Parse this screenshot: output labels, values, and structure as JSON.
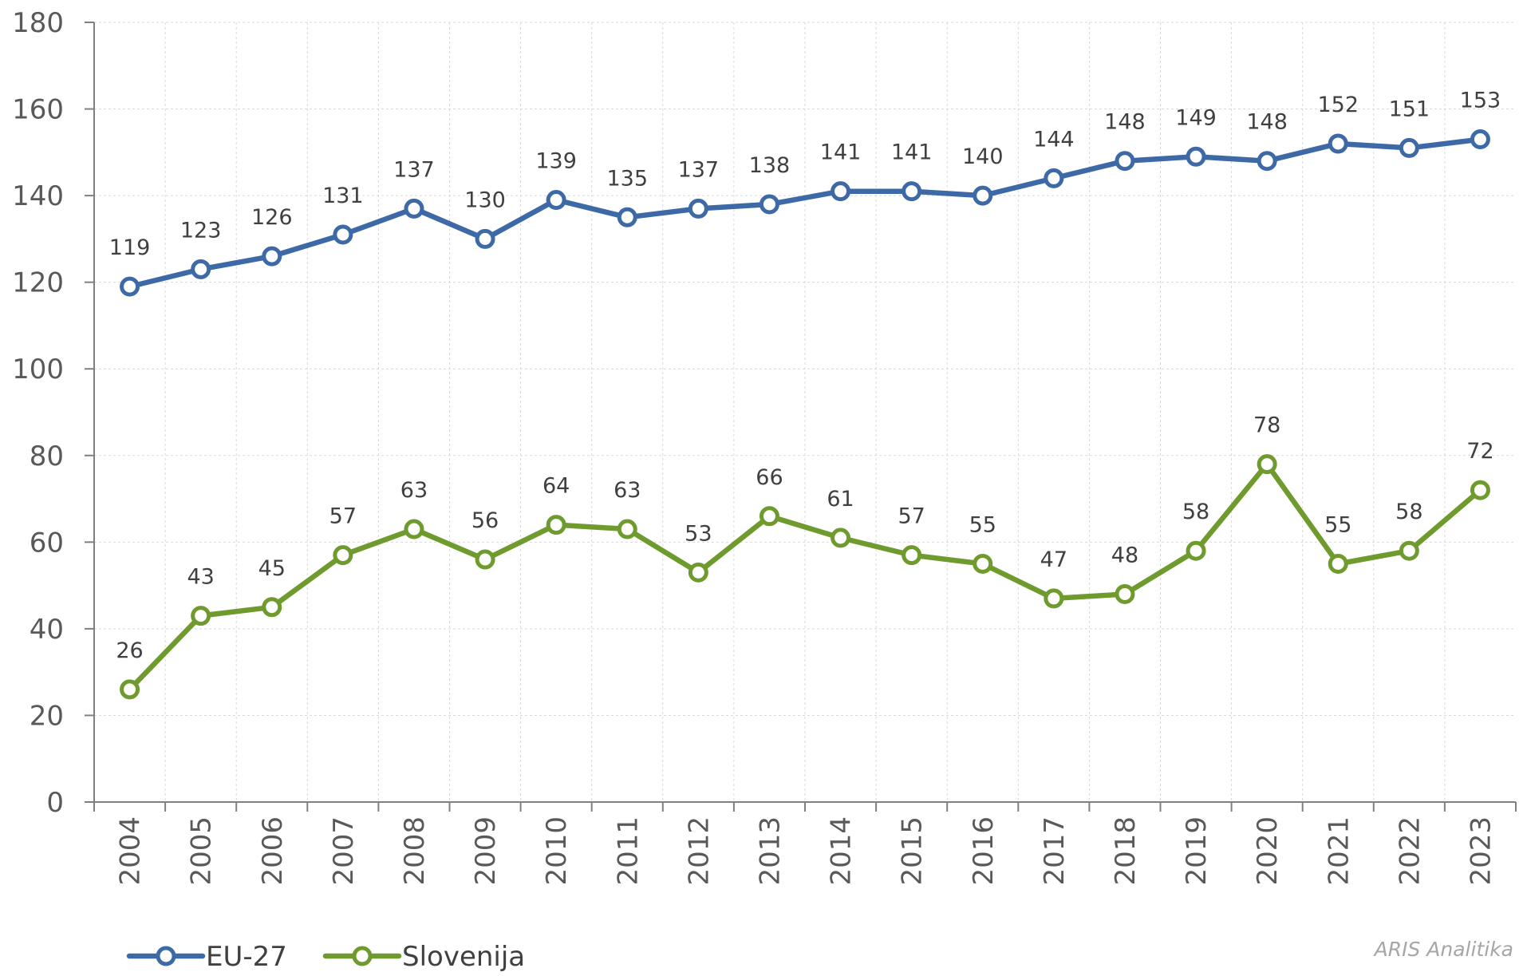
{
  "chart_data": {
    "type": "line",
    "categories": [
      "2004",
      "2005",
      "2006",
      "2007",
      "2008",
      "2009",
      "2010",
      "2011",
      "2012",
      "2013",
      "2014",
      "2015",
      "2016",
      "2017",
      "2018",
      "2019",
      "2020",
      "2021",
      "2022",
      "2023"
    ],
    "series": [
      {
        "name": "EU-27",
        "color": "#3d6aa7",
        "values": [
          119,
          123,
          126,
          131,
          137,
          130,
          139,
          135,
          137,
          138,
          141,
          141,
          140,
          144,
          148,
          149,
          148,
          152,
          151,
          153
        ]
      },
      {
        "name": "Slovenija",
        "color": "#6f9a2e",
        "values": [
          26,
          43,
          45,
          57,
          63,
          56,
          64,
          63,
          53,
          66,
          61,
          57,
          55,
          47,
          48,
          58,
          78,
          55,
          58,
          72
        ]
      }
    ],
    "ylim": [
      0,
      180
    ],
    "yticks": [
      0,
      20,
      40,
      60,
      80,
      100,
      120,
      140,
      160,
      180
    ],
    "grid": true,
    "legend": "bottom-left"
  },
  "watermark": "ARIS Analitika"
}
